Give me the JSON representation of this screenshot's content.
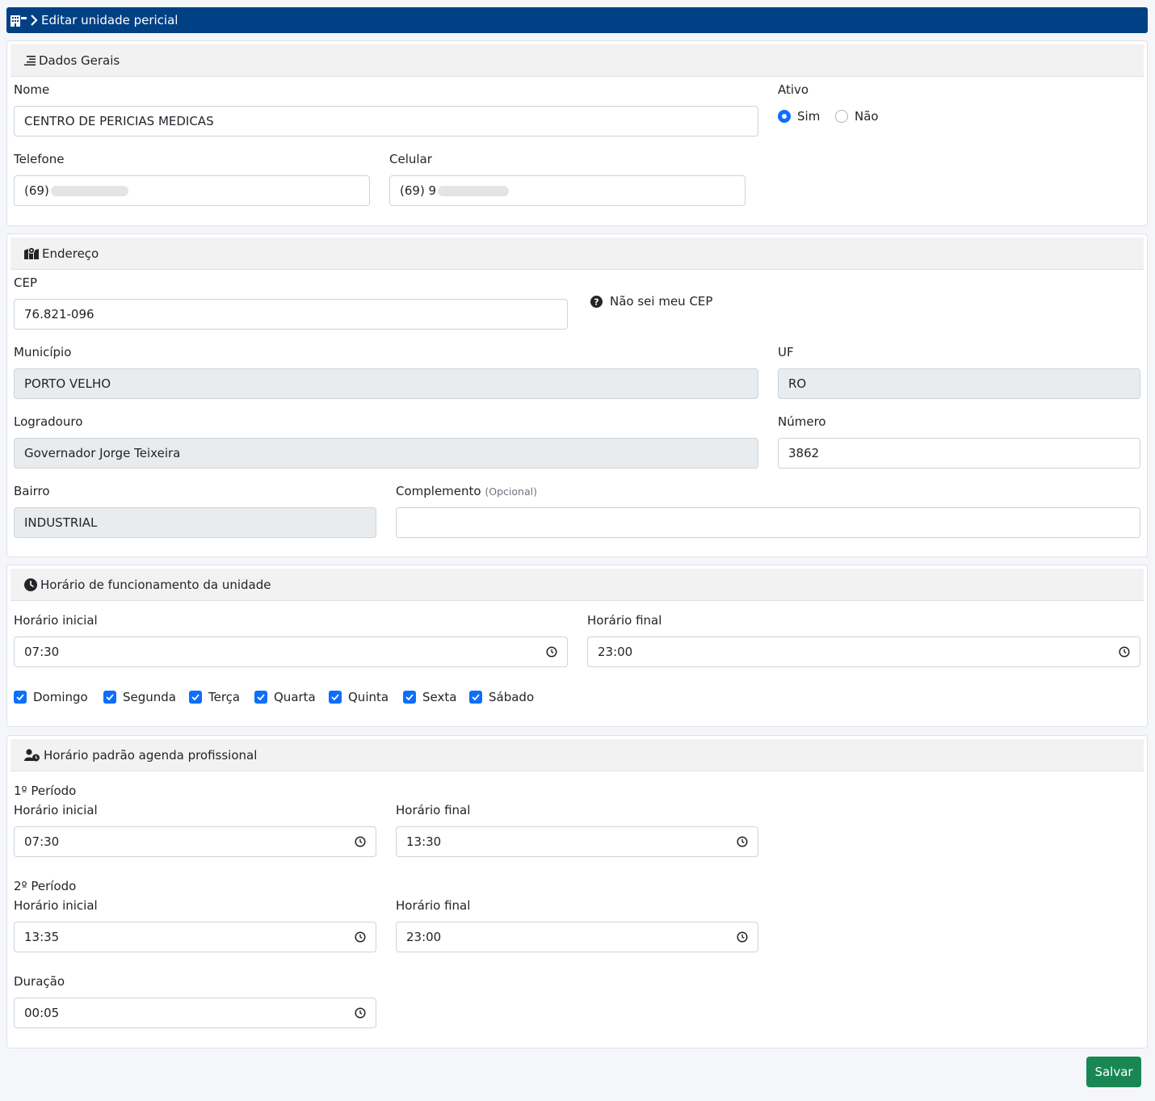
{
  "header": {
    "title": "Editar unidade pericial"
  },
  "dados_gerais": {
    "title": "Dados Gerais",
    "nome_label": "Nome",
    "nome_value": "CENTRO DE PERICIAS MEDICAS",
    "ativo_label": "Ativo",
    "ativo_sim": "Sim",
    "ativo_nao": "Não",
    "ativo_selected": "Sim",
    "telefone_label": "Telefone",
    "telefone_value": "(69)",
    "celular_label": "Celular",
    "celular_value": "(69) 9"
  },
  "endereco": {
    "title": "Endereço",
    "cep_label": "CEP",
    "cep_value": "76.821-096",
    "cep_help": "Não sei meu CEP",
    "municipio_label": "Município",
    "municipio_value": "PORTO VELHO",
    "uf_label": "UF",
    "uf_value": "RO",
    "logradouro_label": "Logradouro",
    "logradouro_value": "Governador Jorge Teixeira",
    "numero_label": "Número",
    "numero_value": "3862",
    "bairro_label": "Bairro",
    "bairro_value": "INDUSTRIAL",
    "complemento_label": "Complemento",
    "complemento_hint": "(Opcional)",
    "complemento_value": ""
  },
  "funcionamento": {
    "title": "Horário de funcionamento da unidade",
    "inicial_label": "Horário inicial",
    "inicial_value": "07:30",
    "final_label": "Horário final",
    "final_value": "23:00",
    "days": [
      "Domingo",
      "Segunda",
      "Terça",
      "Quarta",
      "Quinta",
      "Sexta",
      "Sábado"
    ],
    "days_checked": [
      true,
      true,
      true,
      true,
      true,
      true,
      true
    ]
  },
  "agenda": {
    "title": "Horário padrão agenda profissional",
    "p1_label": "1º Período",
    "p1_inicial_label": "Horário inicial",
    "p1_inicial_value": "07:30",
    "p1_final_label": "Horário final",
    "p1_final_value": "13:30",
    "p2_label": "2º Período",
    "p2_inicial_label": "Horário inicial",
    "p2_inicial_value": "13:35",
    "p2_final_label": "Horário final",
    "p2_final_value": "23:00",
    "duracao_label": "Duração",
    "duracao_value": "00:05"
  },
  "actions": {
    "save_label": "Salvar"
  },
  "colors": {
    "header_bg": "#004085",
    "primary": "#0d6efd",
    "success": "#198754",
    "readonly_bg": "#e9ecef"
  },
  "icons": [
    "building-icon",
    "chevron-right-icon",
    "list-icon",
    "map-icon",
    "question-circle-icon",
    "clock-icon",
    "user-clock-icon",
    "check-icon"
  ]
}
